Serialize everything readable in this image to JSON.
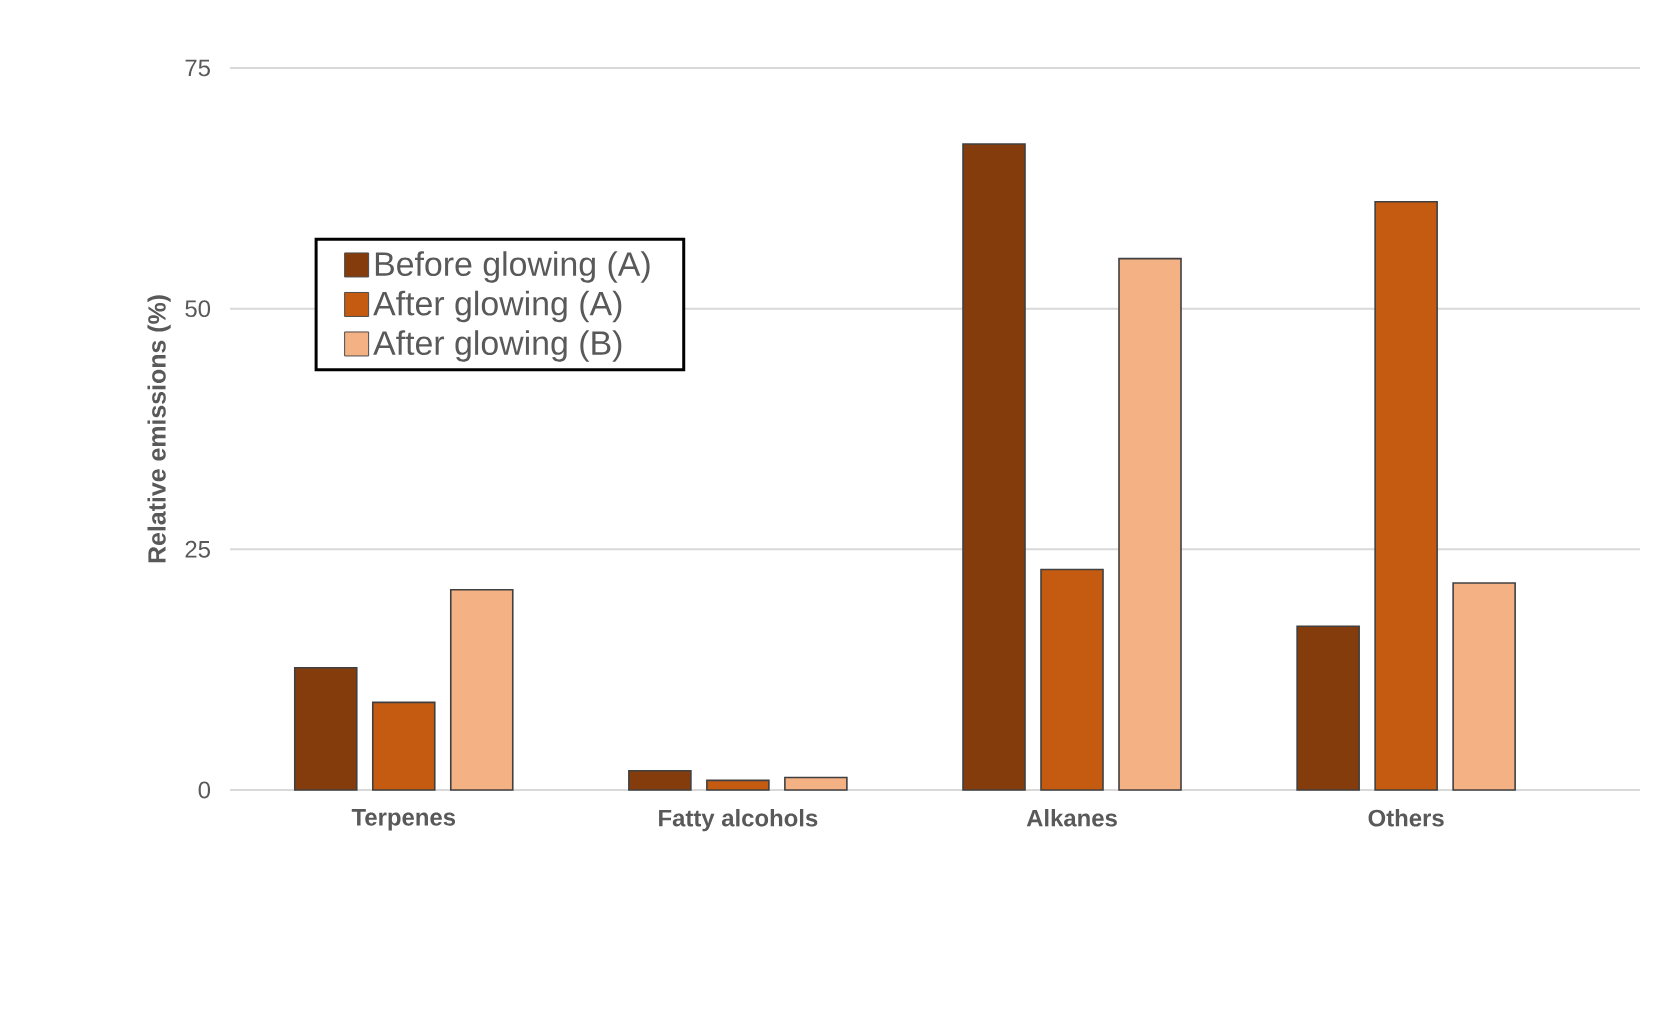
{
  "chart_data": {
    "type": "bar",
    "ylabel": "Relative emissions (%)",
    "categories": [
      "Terpenes",
      "Fatty alcohols",
      "Alkanes",
      "Others"
    ],
    "series": [
      {
        "name": "Before glowing (A)",
        "color": "#843c0c",
        "values": [
          12.7,
          2.0,
          67.1,
          17.0
        ]
      },
      {
        "name": "After glowing (A)",
        "color": "#c55a11",
        "values": [
          9.1,
          1.0,
          22.9,
          61.1
        ]
      },
      {
        "name": "After glowing (B)",
        "color": "#f4b183",
        "values": [
          20.8,
          1.3,
          55.2,
          21.5
        ]
      }
    ],
    "ylim": [
      0,
      75
    ],
    "yticks": [
      0,
      25,
      50,
      75
    ],
    "grid": "y",
    "legend": "top left"
  }
}
